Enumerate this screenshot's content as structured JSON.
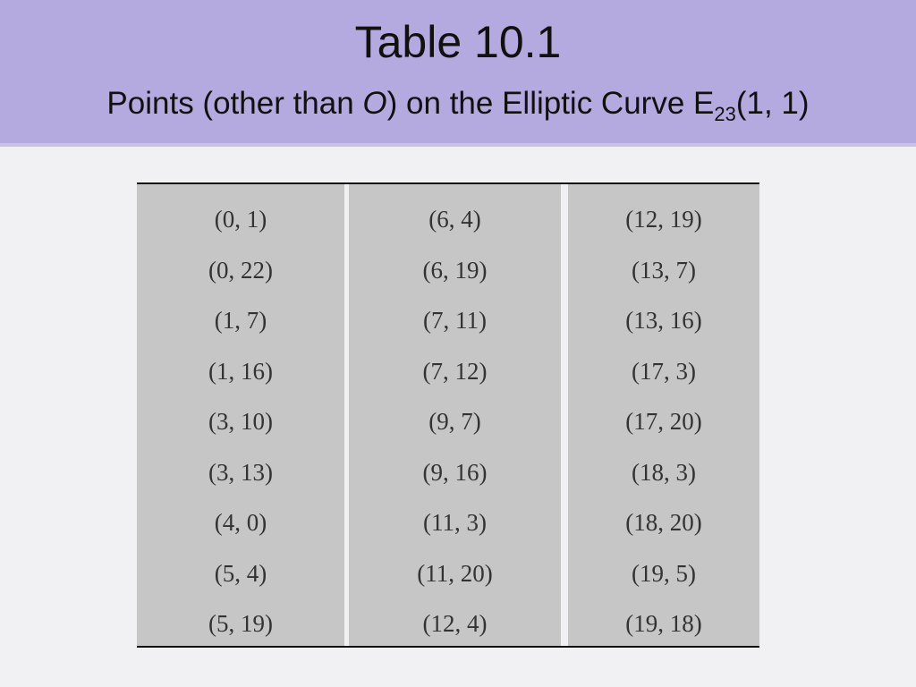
{
  "header": {
    "title": "Table 10.1",
    "subtitle": {
      "before": "Points (other than ",
      "italic": "O",
      "middle": ") on the Elliptic Curve E",
      "subscript": "23",
      "after": "(1, 1)"
    }
  },
  "table": {
    "rows": [
      [
        "(0, 1)",
        "(6, 4)",
        "(12, 19)"
      ],
      [
        "(0, 22)",
        "(6, 19)",
        "(13, 7)"
      ],
      [
        "(1, 7)",
        "(7, 11)",
        "(13, 16)"
      ],
      [
        "(1, 16)",
        "(7, 12)",
        "(17, 3)"
      ],
      [
        "(3, 10)",
        "(9, 7)",
        "(17, 20)"
      ],
      [
        "(3, 13)",
        "(9, 16)",
        "(18, 3)"
      ],
      [
        "(4, 0)",
        "(11, 3)",
        "(18, 20)"
      ],
      [
        "(5, 4)",
        "(11, 20)",
        "(19, 5)"
      ],
      [
        "(5, 19)",
        "(12, 4)",
        "(19, 18)"
      ]
    ]
  }
}
